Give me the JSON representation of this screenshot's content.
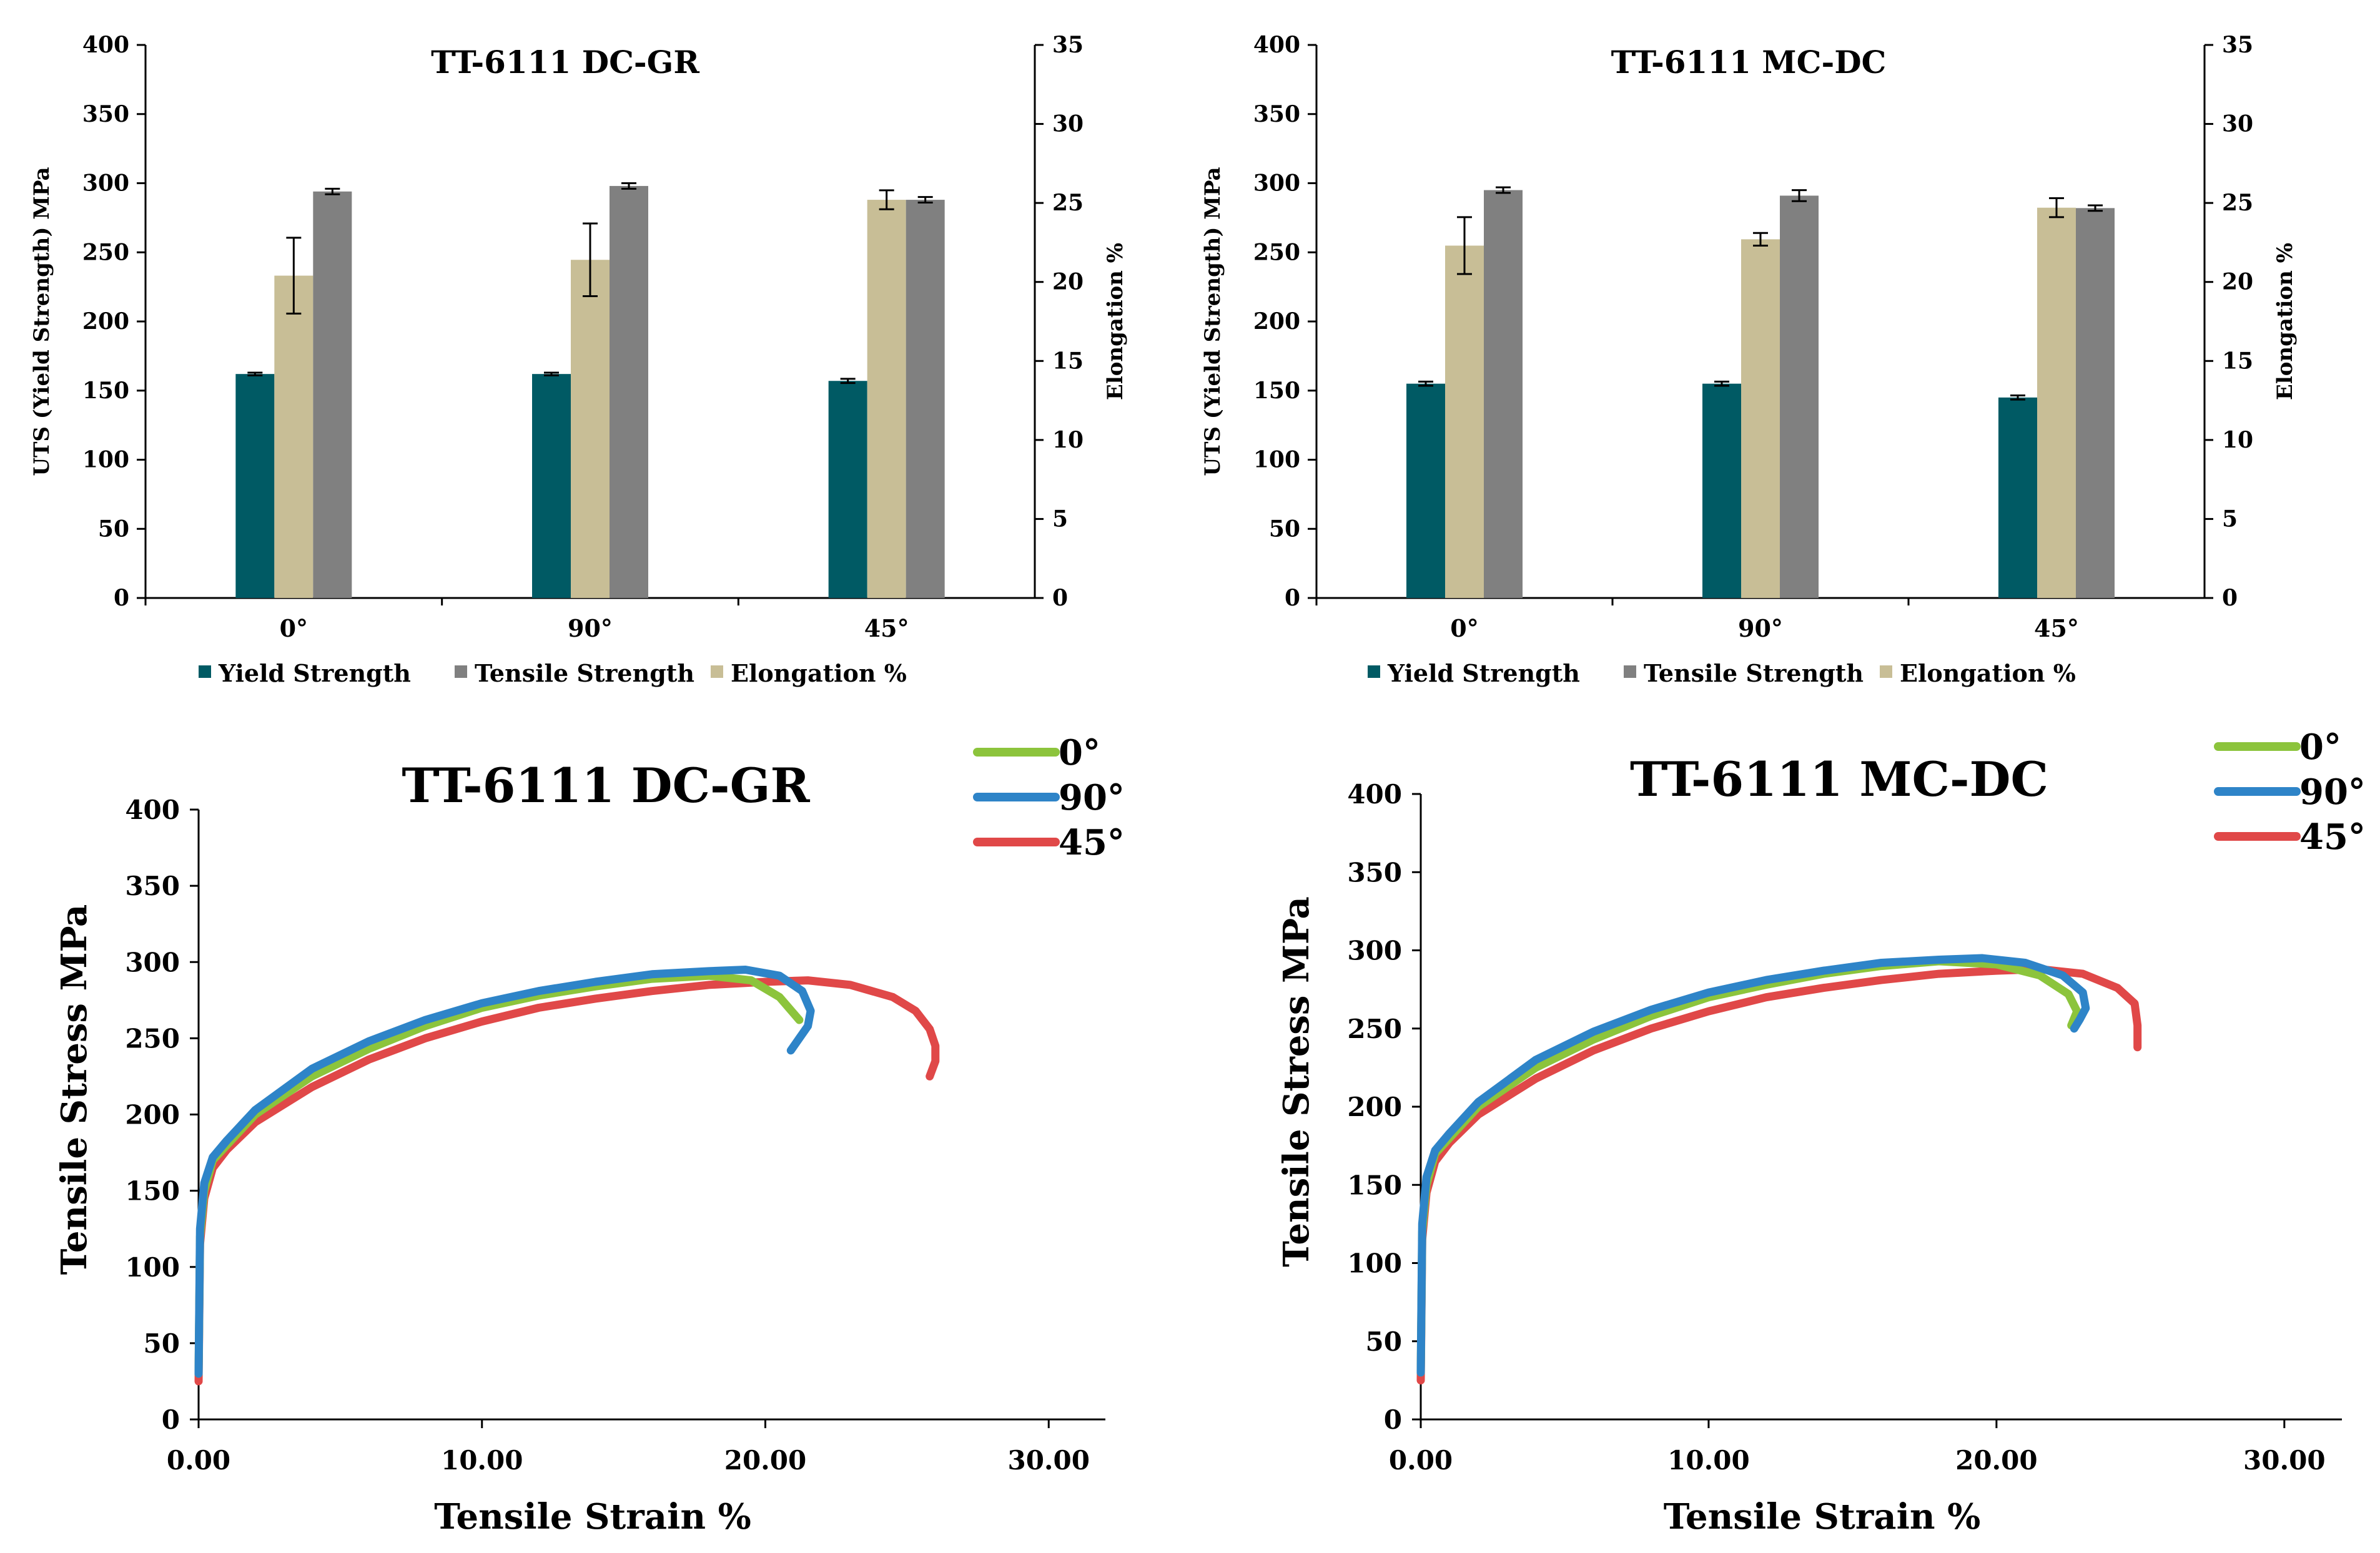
{
  "colors": {
    "yield": "#005a64",
    "tensile": "#808080",
    "elongation": "#c8be96",
    "deg0": "#8cc43c",
    "deg90": "#2e84c8",
    "deg45": "#e04848"
  },
  "chart_data": [
    {
      "type": "bar",
      "title": "TT-6111 DC-GR",
      "categories": [
        "0°",
        "90°",
        "45°"
      ],
      "ylabel": "UTS (Yield Strength) MPa",
      "ylabel_right": "Elongation %",
      "ylim": [
        0,
        400
      ],
      "yticks": [
        "0",
        "50",
        "100",
        "150",
        "200",
        "250",
        "300",
        "350",
        "400"
      ],
      "ylim_right": [
        0,
        35
      ],
      "yticks_right": [
        "0",
        "5",
        "10",
        "15",
        "20",
        "25",
        "30",
        "35"
      ],
      "legend": [
        "Yield Strength",
        "Tensile Strength",
        "Elongation %"
      ],
      "legend_position": "bottom",
      "series": [
        {
          "name": "Yield Strength",
          "axis": "left",
          "values": [
            162,
            162,
            157
          ],
          "errors": [
            1,
            1,
            1.5
          ]
        },
        {
          "name": "Elongation %",
          "axis": "right",
          "values": [
            20.4,
            21.4,
            25.2
          ],
          "errors": [
            2.4,
            2.3,
            0.6
          ]
        },
        {
          "name": "Tensile Strength",
          "axis": "left",
          "values": [
            294,
            298,
            288
          ],
          "errors": [
            2,
            2,
            2
          ]
        }
      ]
    },
    {
      "type": "bar",
      "title": "TT-6111 MC-DC",
      "categories": [
        "0°",
        "90°",
        "45°"
      ],
      "ylabel": "UTS (Yield Strength) MPa",
      "ylabel_right": "Elongation %",
      "ylim": [
        0,
        400
      ],
      "yticks": [
        "0",
        "50",
        "100",
        "150",
        "200",
        "250",
        "300",
        "350",
        "400"
      ],
      "ylim_right": [
        0,
        35
      ],
      "yticks_right": [
        "0",
        "5",
        "10",
        "15",
        "20",
        "25",
        "30",
        "35"
      ],
      "legend": [
        "Yield Strength",
        "Tensile Strength",
        "Elongation %"
      ],
      "legend_position": "bottom",
      "series": [
        {
          "name": "Yield Strength",
          "axis": "left",
          "values": [
            155,
            155,
            145
          ],
          "errors": [
            1.5,
            1.5,
            1.5
          ]
        },
        {
          "name": "Elongation %",
          "axis": "right",
          "values": [
            22.3,
            22.7,
            24.7
          ],
          "errors": [
            1.8,
            0.4,
            0.6
          ]
        },
        {
          "name": "Tensile Strength",
          "axis": "left",
          "values": [
            295,
            291,
            282
          ],
          "errors": [
            2,
            4,
            2
          ]
        }
      ]
    },
    {
      "type": "line",
      "title": "TT-6111 DC-GR",
      "xlabel": "Tensile Strain %",
      "ylabel": "Tensile Stress MPa",
      "xlim": [
        0,
        32
      ],
      "xticks": [
        "0.00",
        "10.00",
        "20.00",
        "30.00"
      ],
      "ylim": [
        0,
        400
      ],
      "yticks": [
        "0",
        "50",
        "100",
        "150",
        "200",
        "250",
        "300",
        "350",
        "400"
      ],
      "legend_position": "top-right",
      "series": [
        {
          "name": "0°",
          "x": [
            0,
            0.05,
            0.2,
            0.5,
            1,
            2,
            4,
            6,
            8,
            10,
            12,
            14,
            16,
            18,
            19.5,
            20.5,
            21.2
          ],
          "y": [
            30,
            120,
            150,
            170,
            180,
            200,
            225,
            243,
            258,
            270,
            278,
            284,
            289,
            291,
            288,
            277,
            262
          ]
        },
        {
          "name": "90°",
          "x": [
            0,
            0.05,
            0.2,
            0.5,
            1,
            2,
            4,
            6,
            8,
            10,
            12,
            14,
            16,
            18,
            19.3,
            20.5,
            21.3,
            21.6,
            21.5,
            21.2,
            20.9
          ],
          "y": [
            30,
            125,
            155,
            172,
            183,
            203,
            230,
            248,
            262,
            273,
            281,
            287,
            292,
            294,
            295,
            291,
            281,
            268,
            258,
            250,
            242
          ]
        },
        {
          "name": "45°",
          "x": [
            0,
            0.05,
            0.2,
            0.5,
            1,
            2,
            4,
            6,
            8,
            10,
            12,
            14,
            16,
            18,
            20,
            21.5,
            23,
            24.5,
            25.3,
            25.8,
            26,
            26,
            25.8
          ],
          "y": [
            25,
            115,
            145,
            165,
            177,
            195,
            218,
            236,
            250,
            261,
            270,
            276,
            281,
            285,
            287,
            288,
            285,
            277,
            268,
            256,
            245,
            235,
            225
          ]
        }
      ]
    },
    {
      "type": "line",
      "title": "TT-6111 MC-DC",
      "xlabel": "Tensile Strain %",
      "ylabel": "Tensile Stress MPa",
      "xlim": [
        0,
        32
      ],
      "xticks": [
        "0.00",
        "10.00",
        "20.00",
        "30.00"
      ],
      "ylim": [
        0,
        400
      ],
      "yticks": [
        "0",
        "50",
        "100",
        "150",
        "200",
        "250",
        "300",
        "350",
        "400"
      ],
      "legend_position": "top-right",
      "series": [
        {
          "name": "0°",
          "x": [
            0,
            0.05,
            0.2,
            0.5,
            1,
            2,
            4,
            6,
            8,
            10,
            12,
            14,
            16,
            18,
            20,
            21.5,
            22.5,
            22.8,
            22.6
          ],
          "y": [
            30,
            120,
            150,
            170,
            180,
            200,
            225,
            243,
            258,
            270,
            278,
            285,
            290,
            293,
            291,
            284,
            272,
            261,
            252
          ]
        },
        {
          "name": "90°",
          "x": [
            0,
            0.05,
            0.2,
            0.5,
            1,
            2,
            4,
            6,
            8,
            10,
            12,
            14,
            16,
            18,
            19.5,
            21,
            22.3,
            23,
            23.1,
            22.9,
            22.7
          ],
          "y": [
            30,
            125,
            155,
            172,
            183,
            203,
            230,
            248,
            262,
            273,
            281,
            287,
            292,
            294,
            295,
            292,
            284,
            273,
            263,
            256,
            250
          ]
        },
        {
          "name": "45°",
          "x": [
            0,
            0.05,
            0.2,
            0.5,
            1,
            2,
            4,
            6,
            8,
            10,
            12,
            14,
            16,
            18,
            20,
            21.5,
            23,
            24.2,
            24.8,
            24.9,
            24.9
          ],
          "y": [
            25,
            115,
            145,
            165,
            177,
            195,
            218,
            236,
            250,
            261,
            270,
            276,
            281,
            285,
            287,
            288,
            285,
            276,
            266,
            252,
            238
          ]
        }
      ]
    }
  ]
}
